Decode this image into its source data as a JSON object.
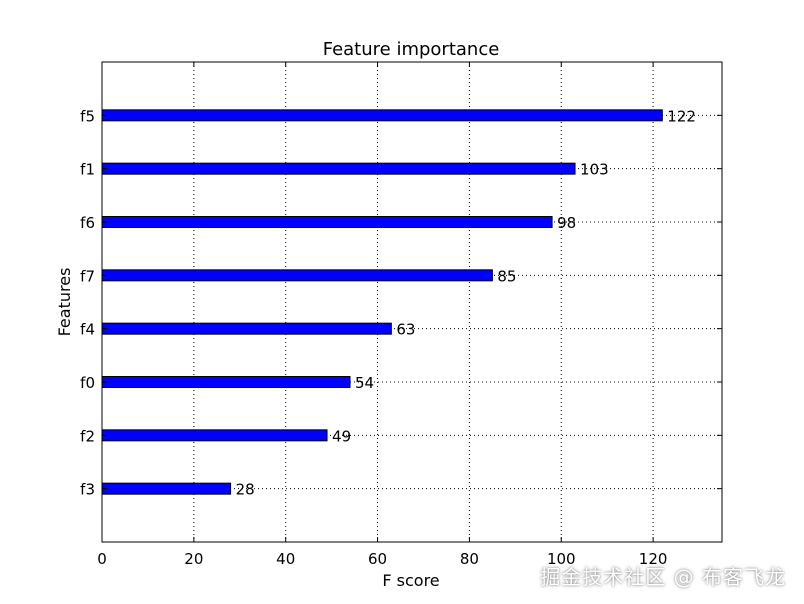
{
  "chart_data": {
    "type": "bar",
    "orientation": "horizontal",
    "title": "Feature importance",
    "xlabel": "F score",
    "ylabel": "Features",
    "categories": [
      "f5",
      "f1",
      "f6",
      "f7",
      "f4",
      "f0",
      "f2",
      "f3"
    ],
    "values": [
      122,
      103,
      98,
      85,
      63,
      54,
      49,
      28
    ],
    "data_labels": [
      "122",
      "103",
      "98",
      "85",
      "63",
      "54",
      "49",
      "28"
    ],
    "xlim": [
      0,
      135
    ],
    "xticks": [
      0,
      20,
      40,
      60,
      80,
      100,
      120
    ],
    "xtick_labels": [
      "0",
      "20",
      "40",
      "60",
      "80",
      "100",
      "120"
    ],
    "grid": true,
    "bar_color": "#0000ff",
    "bar_edge_color": "#000000"
  },
  "watermark": "掘金技术社区 @ 布客飞龙"
}
